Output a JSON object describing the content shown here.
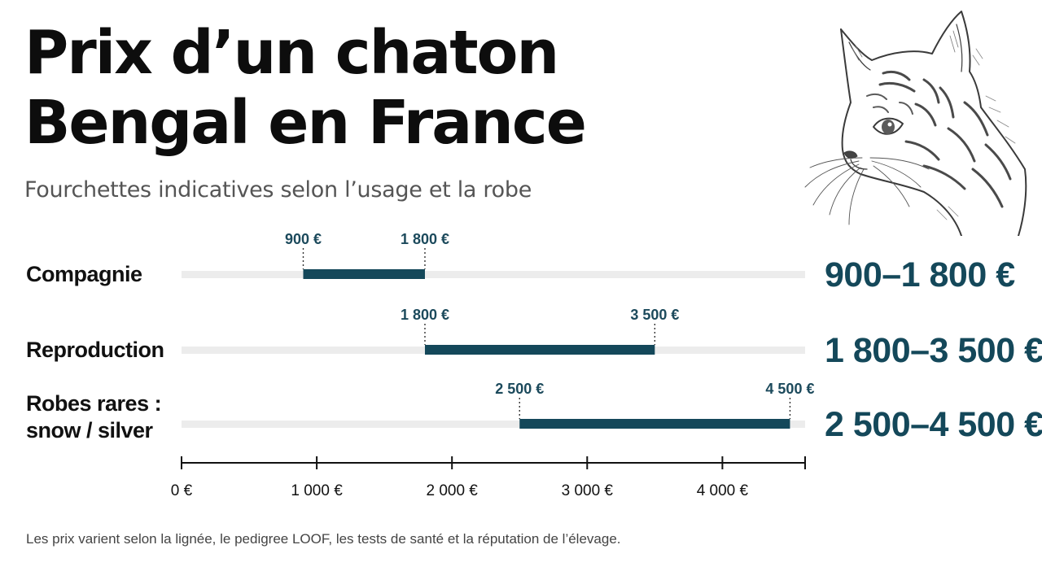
{
  "header": {
    "title_line1": "Prix d’un chaton",
    "title_line2": "Bengal en France",
    "subtitle": "Fourchettes indicatives selon l’usage et la robe"
  },
  "illustration": {
    "icon": "bengal-cat-sketch"
  },
  "footnote": "Les prix varient selon la lignée, le pedigree LOOF, les tests de santé et la réputation de l’élevage.",
  "colors": {
    "bar": "#14485a",
    "track": "#ececec",
    "range_text": "#14485a",
    "value_text": "#1c4a5c"
  },
  "chart_data": {
    "type": "bar",
    "orientation": "horizontal-range",
    "xlim": [
      0,
      4600
    ],
    "x_ticks": [
      0,
      1000,
      2000,
      3000,
      4000
    ],
    "x_tick_labels": [
      "0 €",
      "1 000 €",
      "2 000 €",
      "3 000 €",
      "4 000 €"
    ],
    "grid": false,
    "series": [
      {
        "category_lines": [
          "Compagnie"
        ],
        "low": 900,
        "high": 1800,
        "low_label": "900 €",
        "high_label": "1 800 €",
        "range_label": "900–1 800 €"
      },
      {
        "category_lines": [
          "Reproduction"
        ],
        "low": 1800,
        "high": 3500,
        "low_label": "1 800 €",
        "high_label": "3 500 €",
        "range_label": "1 800–3 500 €"
      },
      {
        "category_lines": [
          "Robes rares :",
          "snow / silver"
        ],
        "low": 2500,
        "high": 4500,
        "low_label": "2 500 €",
        "high_label": "4 500 €",
        "range_label": "2 500–4 500 €"
      }
    ]
  }
}
